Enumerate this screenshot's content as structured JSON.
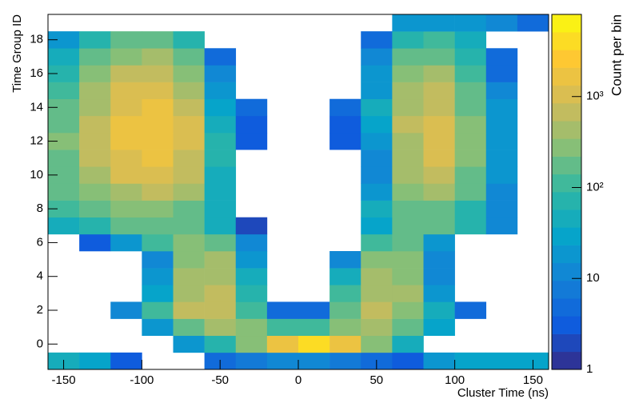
{
  "chart_data": {
    "type": "heatmap",
    "xlabel": "Cluster Time (ns)",
    "ylabel": "Time Group ID",
    "zlabel": "Count per bin",
    "x_bins": [
      -160,
      -140,
      -120,
      -100,
      -80,
      -60,
      -40,
      -20,
      0,
      20,
      40,
      60,
      80,
      100,
      120,
      140,
      160
    ],
    "y_bins": [
      -1.5,
      -0.5,
      0.5,
      1.5,
      2.5,
      3.5,
      4.5,
      5.5,
      6.5,
      7.5,
      8.5,
      9.5,
      10.5,
      11.5,
      12.5,
      13.5,
      14.5,
      15.5,
      16.5,
      17.5,
      18.5,
      19.5
    ],
    "z": [
      [
        40,
        30,
        3,
        null,
        null,
        5,
        8,
        10,
        10,
        8,
        5,
        3,
        20,
        30,
        30,
        30
      ],
      [
        null,
        null,
        null,
        null,
        20,
        80,
        300,
        1500,
        5000,
        1500,
        300,
        50,
        null,
        null,
        null,
        null
      ],
      [
        null,
        null,
        null,
        20,
        200,
        400,
        300,
        100,
        100,
        300,
        400,
        200,
        30,
        null,
        null,
        null
      ],
      [
        null,
        null,
        10,
        100,
        800,
        600,
        100,
        5,
        5,
        200,
        700,
        300,
        50,
        5,
        null,
        null
      ],
      [
        null,
        null,
        null,
        30,
        500,
        600,
        80,
        null,
        null,
        100,
        500,
        400,
        20,
        null,
        null,
        null
      ],
      [
        null,
        null,
        null,
        20,
        400,
        500,
        50,
        null,
        null,
        50,
        400,
        300,
        10,
        null,
        null,
        null
      ],
      [
        null,
        null,
        null,
        10,
        300,
        400,
        20,
        null,
        null,
        10,
        300,
        300,
        10,
        null,
        null,
        null
      ],
      [
        null,
        3,
        20,
        100,
        300,
        200,
        10,
        null,
        null,
        null,
        100,
        150,
        20,
        null,
        null,
        null
      ],
      [
        50,
        80,
        150,
        200,
        150,
        40,
        2,
        null,
        null,
        null,
        30,
        150,
        150,
        80,
        10,
        null
      ],
      [
        100,
        150,
        250,
        300,
        200,
        50,
        null,
        null,
        null,
        null,
        40,
        200,
        200,
        80,
        10,
        null
      ],
      [
        150,
        300,
        500,
        600,
        400,
        50,
        null,
        null,
        null,
        null,
        20,
        300,
        400,
        150,
        10,
        null
      ],
      [
        200,
        500,
        1000,
        1200,
        700,
        50,
        null,
        null,
        null,
        null,
        10,
        400,
        600,
        200,
        15,
        null
      ],
      [
        200,
        600,
        1200,
        1500,
        800,
        60,
        null,
        null,
        null,
        null,
        10,
        500,
        1000,
        300,
        20,
        null
      ],
      [
        250,
        700,
        1500,
        1800,
        900,
        60,
        3,
        null,
        null,
        3,
        20,
        500,
        1000,
        300,
        20,
        null
      ],
      [
        200,
        600,
        1500,
        2000,
        900,
        40,
        3,
        null,
        null,
        3,
        30,
        600,
        1000,
        300,
        20,
        null
      ],
      [
        150,
        500,
        1200,
        1500,
        700,
        30,
        5,
        null,
        null,
        5,
        40,
        500,
        800,
        200,
        15,
        null
      ],
      [
        100,
        400,
        1000,
        1200,
        500,
        20,
        null,
        null,
        null,
        null,
        20,
        400,
        600,
        150,
        10,
        null
      ],
      [
        80,
        300,
        600,
        800,
        300,
        10,
        null,
        null,
        null,
        null,
        20,
        300,
        400,
        100,
        5,
        null
      ],
      [
        50,
        150,
        300,
        350,
        150,
        5,
        null,
        null,
        null,
        null,
        10,
        150,
        200,
        60,
        5,
        null
      ],
      [
        20,
        80,
        150,
        150,
        60,
        null,
        null,
        null,
        null,
        null,
        5,
        80,
        100,
        40,
        null,
        null
      ],
      [
        null,
        null,
        null,
        null,
        null,
        null,
        null,
        null,
        null,
        null,
        null,
        20,
        20,
        20,
        10,
        5
      ]
    ],
    "xlim": [
      -160,
      160
    ],
    "xticks": [
      -150,
      -100,
      -50,
      0,
      50,
      100,
      150
    ],
    "ylim": [
      -1.5,
      19.5
    ],
    "yticks": [
      0,
      2,
      4,
      6,
      8,
      10,
      12,
      14,
      16,
      18
    ],
    "zlim": [
      1,
      8000
    ],
    "zlog": true,
    "zticks": [
      1,
      10,
      {
        "value": 100,
        "label": "10²"
      },
      {
        "value": 1000,
        "label": "10³"
      }
    ],
    "contours": 20,
    "palette": [
      "#352a87",
      "#0f5cdd",
      "#1481d6",
      "#06a4ca",
      "#2eb7a4",
      "#87bf77",
      "#d1bb59",
      "#fec832",
      "#f9fb0e"
    ]
  }
}
